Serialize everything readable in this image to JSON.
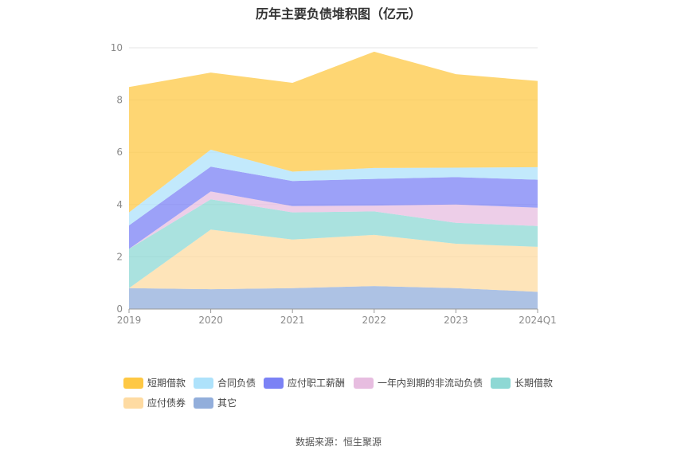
{
  "title": "历年主要负债堆积图（亿元）",
  "source": "数据来源：恒生聚源",
  "chart_data": {
    "type": "area",
    "stacked": true,
    "categories": [
      "2019",
      "2020",
      "2021",
      "2022",
      "2023",
      "2024Q1"
    ],
    "ylim": [
      0,
      10
    ],
    "yticks": [
      0,
      2,
      4,
      6,
      8,
      10
    ],
    "grid": true,
    "legend_position": "bottom",
    "series": [
      {
        "name": "其它",
        "color": "#92aedb",
        "values": [
          0.8,
          0.76,
          0.8,
          0.88,
          0.8,
          0.66
        ]
      },
      {
        "name": "应付债券",
        "color": "#fedba2",
        "values": [
          0.0,
          2.28,
          1.86,
          1.96,
          1.7,
          1.72
        ]
      },
      {
        "name": "长期借款",
        "color": "#8ed8d4",
        "values": [
          1.5,
          1.16,
          1.04,
          0.9,
          0.8,
          0.8
        ]
      },
      {
        "name": "一年内到期的非流动负债",
        "color": "#e7bde0",
        "values": [
          0.0,
          0.3,
          0.24,
          0.22,
          0.7,
          0.7
        ]
      },
      {
        "name": "应付职工薪酬",
        "color": "#7b82f5",
        "values": [
          0.9,
          0.95,
          0.96,
          1.02,
          1.05,
          1.07
        ]
      },
      {
        "name": "合同负债",
        "color": "#aee2fb",
        "values": [
          0.5,
          0.65,
          0.36,
          0.42,
          0.36,
          0.48
        ]
      },
      {
        "name": "短期借款",
        "color": "#fec844",
        "values": [
          4.8,
          2.95,
          3.4,
          4.45,
          3.58,
          3.3
        ]
      }
    ]
  },
  "legend": [
    {
      "name": "短期借款",
      "color": "#fec844"
    },
    {
      "name": "合同负债",
      "color": "#aee2fb"
    },
    {
      "name": "应付职工薪酬",
      "color": "#7b82f5"
    },
    {
      "name": "一年内到期的非流动负债",
      "color": "#e7bde0"
    },
    {
      "name": "长期借款",
      "color": "#8ed8d4"
    },
    {
      "name": "应付债券",
      "color": "#fedba2"
    },
    {
      "name": "其它",
      "color": "#92aedb"
    }
  ]
}
